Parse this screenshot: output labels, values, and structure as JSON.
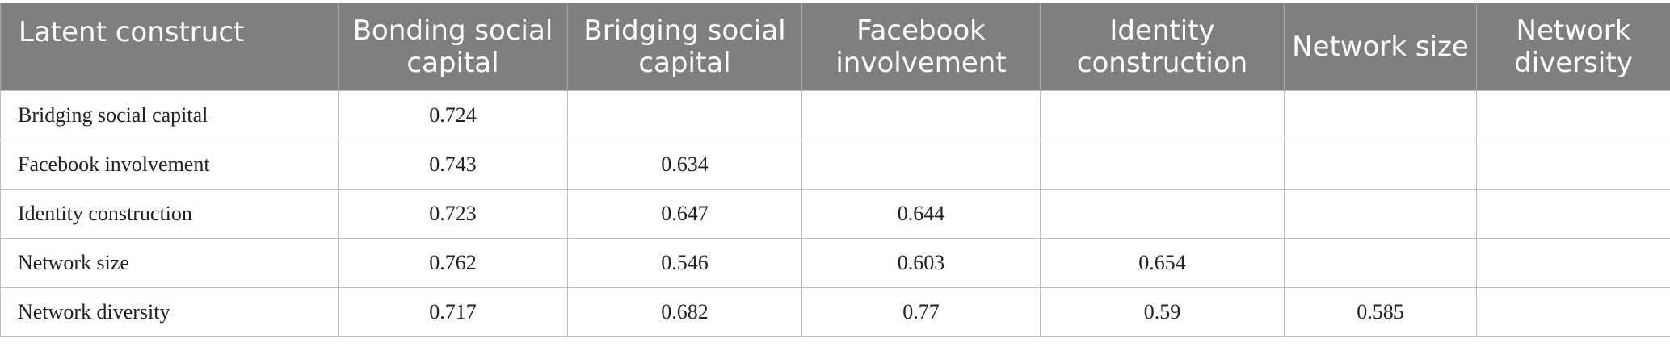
{
  "table": {
    "headers": [
      "Latent construct",
      "Bonding social capital",
      "Bridging social capital",
      "Facebook involvement",
      "Identity construction",
      "Network size",
      "Network diversity"
    ],
    "rows": [
      {
        "label": "Bridging social capital",
        "cells": [
          "0.724",
          "",
          "",
          "",
          "",
          ""
        ]
      },
      {
        "label": "Facebook involvement",
        "cells": [
          "0.743",
          "0.634",
          "",
          "",
          "",
          ""
        ]
      },
      {
        "label": "Identity construction",
        "cells": [
          "0.723",
          "0.647",
          "0.644",
          "",
          "",
          ""
        ]
      },
      {
        "label": "Network size",
        "cells": [
          "0.762",
          "0.546",
          "0.603",
          "0.654",
          "",
          ""
        ]
      },
      {
        "label": "Network diversity",
        "cells": [
          "0.717",
          "0.682",
          "0.77",
          "0.59",
          "0.585",
          ""
        ]
      }
    ]
  }
}
